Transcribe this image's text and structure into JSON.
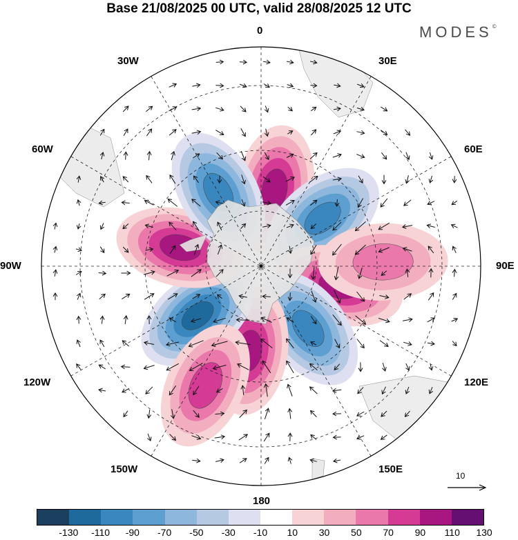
{
  "title": "Base 21/08/2025 00 UTC, valid 28/08/2025 12 UTC",
  "brand": "MODES",
  "brand_mark": "©",
  "longitude_labels": {
    "lon_0": "0",
    "lon_30e": "30E",
    "lon_60e": "60E",
    "lon_90e": "90E",
    "lon_120e": "120E",
    "lon_150e": "150E",
    "lon_180": "180",
    "lon_150w": "150W",
    "lon_120w": "120W",
    "lon_90w": "90W",
    "lon_60w": "60W",
    "lon_30w": "30W"
  },
  "reference_vector": {
    "label": "10"
  },
  "colorbar": {
    "colors": [
      "#1b3f5e",
      "#1f6a9c",
      "#3a86bf",
      "#5c9fd0",
      "#8db7dd",
      "#b6c9e2",
      "#dedff0",
      "#ffffff",
      "#f8d3d6",
      "#f2adbf",
      "#ea78aa",
      "#d53a95",
      "#a8167f",
      "#660f73"
    ],
    "ticks": [
      "-130",
      "-110",
      "-90",
      "-70",
      "-50",
      "-30",
      "-10",
      "10",
      "30",
      "50",
      "70",
      "90",
      "110",
      "130"
    ]
  },
  "anomaly_centers": [
    {
      "lon_deg": 10,
      "lat_deg": -58,
      "value": 105
    },
    {
      "lon_deg": 52,
      "lat_deg": -58,
      "value": -105
    },
    {
      "lon_deg": 104,
      "lat_deg": -57,
      "value": 100
    },
    {
      "lon_deg": 143,
      "lat_deg": -58,
      "value": -110
    },
    {
      "lon_deg": 188,
      "lat_deg": -55,
      "value": 105
    },
    {
      "lon_deg": 232,
      "lat_deg": -57,
      "value": -115
    },
    {
      "lon_deg": 283,
      "lat_deg": -56,
      "value": 110
    },
    {
      "lon_deg": 330,
      "lat_deg": -55,
      "value": -95
    },
    {
      "lon_deg": 88,
      "lat_deg": -40,
      "value": 60
    },
    {
      "lon_deg": 205,
      "lat_deg": -36,
      "value": 80
    }
  ]
}
